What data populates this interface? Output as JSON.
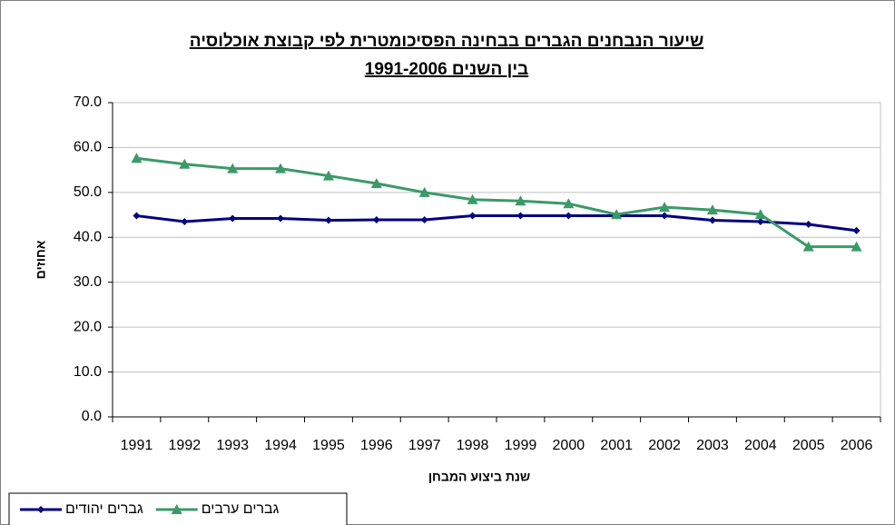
{
  "chart_data": {
    "type": "line",
    "title": "שיעור הנבחנים הגברים בבחינה הפסיכומטרית לפי קבוצת אוכלוסיה",
    "subtitle": "בין השנים 1991-2006",
    "x_label": "שנת ביצוע המבחן",
    "y_label": "אחוזים",
    "categories": [
      "1991",
      "1992",
      "1993",
      "1994",
      "1995",
      "1996",
      "1997",
      "1998",
      "1999",
      "2000",
      "2001",
      "2002",
      "2003",
      "2004",
      "2005",
      "2006"
    ],
    "series": [
      {
        "name": "גברים יהודים",
        "color": "#000080",
        "marker": "diamond",
        "values": [
          44.8,
          43.5,
          44.2,
          44.2,
          43.8,
          43.9,
          43.9,
          44.8,
          44.8,
          44.8,
          44.8,
          44.8,
          43.8,
          43.5,
          42.9,
          41.5
        ]
      },
      {
        "name": "גברים ערבים",
        "color": "#3a9a68",
        "marker": "triangle",
        "values": [
          57.6,
          56.3,
          55.3,
          55.3,
          53.7,
          52.0,
          50.0,
          48.4,
          48.1,
          47.5,
          45.1,
          46.7,
          46.1,
          45.1,
          37.9,
          37.9
        ]
      }
    ],
    "ylim": [
      0,
      70
    ],
    "yticks": [
      {
        "value": 0,
        "label": "0.0"
      },
      {
        "value": 10,
        "label": "10.0"
      },
      {
        "value": 20,
        "label": "20.0"
      },
      {
        "value": 30,
        "label": "30.0"
      },
      {
        "value": 40,
        "label": "40.0"
      },
      {
        "value": 50,
        "label": "50.0"
      },
      {
        "value": 60,
        "label": "60.0"
      },
      {
        "value": 70,
        "label": "70.0"
      }
    ],
    "grid": true,
    "legend": "bottom-left"
  }
}
